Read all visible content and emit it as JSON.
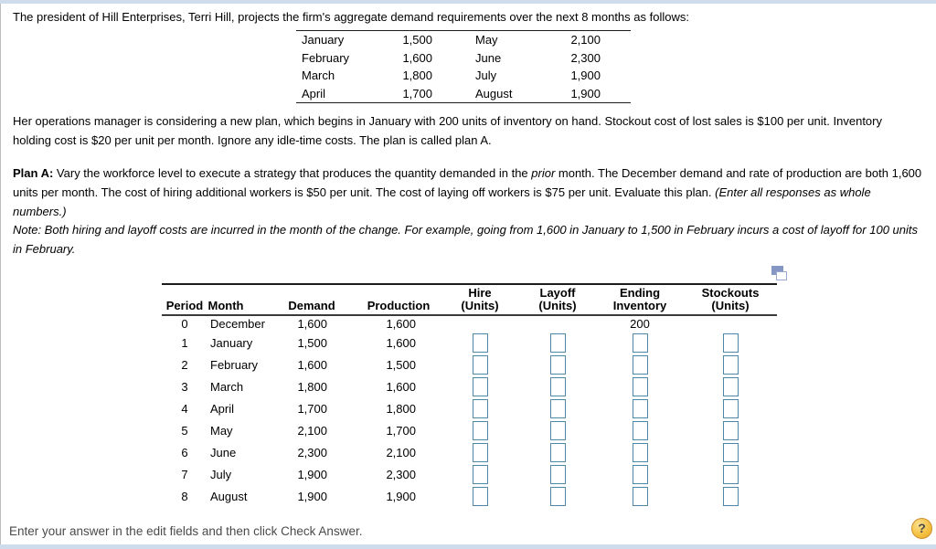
{
  "colors": {
    "edge_bar": "#cfdcec",
    "input_border": "#4e86a8",
    "help_fill": "#f4bf3e",
    "help_border": "#cd8f2e",
    "icon_slate_blue": "#8595c4",
    "footer_text": "#4a4a4a"
  },
  "intro": "The president of Hill Enterprises, Terri Hill, projects the firm's aggregate demand requirements over the next 8 months as follows:",
  "demand_table": {
    "rows": [
      {
        "m1": "January",
        "v1": "1,500",
        "m2": "May",
        "v2": "2,100"
      },
      {
        "m1": "February",
        "v1": "1,600",
        "m2": "June",
        "v2": "2,300"
      },
      {
        "m1": "March",
        "v1": "1,800",
        "m2": "July",
        "v2": "1,900"
      },
      {
        "m1": "April",
        "v1": "1,700",
        "m2": "August",
        "v2": "1,900"
      }
    ]
  },
  "para_manager": "Her operations manager is considering a new plan, which begins in January with 200 units of inventory on hand. Stockout cost of lost sales is $100 per unit. Inventory holding cost is $20 per unit per month. Ignore any idle-time costs. The plan is called plan A.",
  "plan_a": {
    "label": "Plan A:",
    "text_before_prior": " Vary the workforce level to execute a strategy that produces the quantity demanded in the ",
    "prior_word": "prior",
    "text_after_prior": " month. The December demand and rate of production are both 1,600 units per month. The cost of hiring additional workers is $50 per unit. The cost of laying off workers is $75 per unit. Evaluate this plan. ",
    "enter_note": "(Enter all responses as whole numbers.)"
  },
  "note": "Note: Both hiring and layoff costs are incurred in the month of the change. For example, going from 1,600 in January to 1,500 in February incurs a cost of layoff for 100 units in February.",
  "worksheet": {
    "headers": {
      "period": "Period",
      "month": "Month",
      "demand": "Demand",
      "production": "Production",
      "hire_l1": "Hire",
      "hire_l2": "(Units)",
      "layoff_l1": "Layoff",
      "layoff_l2": "(Units)",
      "ending_l1": "Ending",
      "ending_l2": "Inventory",
      "stock_l1": "Stockouts",
      "stock_l2": "(Units)"
    },
    "rows": [
      {
        "period": "0",
        "month": "December",
        "demand": "1,600",
        "production": "1,600",
        "ending_inventory": "200",
        "has_inputs": false
      },
      {
        "period": "1",
        "month": "January",
        "demand": "1,500",
        "production": "1,600",
        "has_inputs": true
      },
      {
        "period": "2",
        "month": "February",
        "demand": "1,600",
        "production": "1,500",
        "has_inputs": true
      },
      {
        "period": "3",
        "month": "March",
        "demand": "1,800",
        "production": "1,600",
        "has_inputs": true
      },
      {
        "period": "4",
        "month": "April",
        "demand": "1,700",
        "production": "1,800",
        "has_inputs": true
      },
      {
        "period": "5",
        "month": "May",
        "demand": "2,100",
        "production": "1,700",
        "has_inputs": true
      },
      {
        "period": "6",
        "month": "June",
        "demand": "2,300",
        "production": "2,100",
        "has_inputs": true
      },
      {
        "period": "7",
        "month": "July",
        "demand": "1,900",
        "production": "2,300",
        "has_inputs": true
      },
      {
        "period": "8",
        "month": "August",
        "demand": "1,900",
        "production": "1,900",
        "has_inputs": true
      }
    ]
  },
  "footer": {
    "instruction": "Enter your answer in the edit fields and then click Check Answer.",
    "help_label": "?"
  }
}
